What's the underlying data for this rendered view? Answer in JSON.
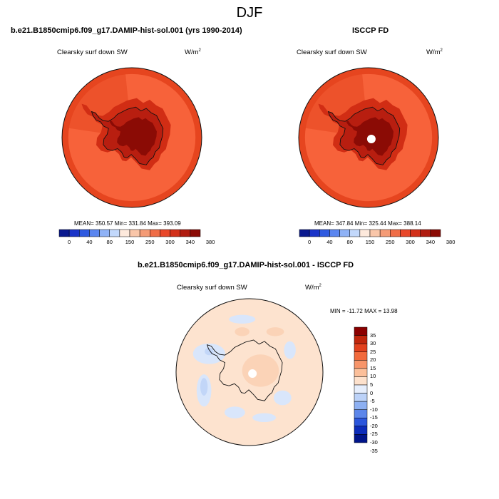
{
  "page_title": "DJF",
  "panel_left": {
    "title": "b.e21.B1850cmip6.f09_g17.DAMIP-hist-sol.001 (yrs 1990-2014)",
    "variable": "Clearsky surf down SW",
    "units_base": "W/m",
    "units_exp": "2",
    "stats": "MEAN= 350.57  Min= 331.84  Max= 393.09"
  },
  "panel_right": {
    "title": "ISCCP FD",
    "variable": "Clearsky surf down SW",
    "units_base": "W/m",
    "units_exp": "2",
    "stats": "MEAN= 347.84  Min= 325.44  Max= 388.14"
  },
  "panel_diff": {
    "title": "b.e21.B1850cmip6.f09_g17.DAMIP-hist-sol.001 - ISCCP FD",
    "variable": "Clearsky surf down SW",
    "units_base": "W/m",
    "units_exp": "2",
    "stats": "MIN = -11.72 MAX =  13.98"
  },
  "colors": {
    "abs_scale": [
      "#0b1a8f",
      "#1a34c8",
      "#2f5ae0",
      "#5b86f0",
      "#8fb2f6",
      "#c2d8fb",
      "#fde9dc",
      "#f9c6a9",
      "#f49b76",
      "#ef6d47",
      "#e8482a",
      "#d2301a",
      "#b01c10",
      "#8b0b05"
    ],
    "diff_scale": [
      "#8b0000",
      "#c0260c",
      "#e2411d",
      "#f26a3c",
      "#f7956a",
      "#fbbf9a",
      "#fde1cc",
      "#e6eefc",
      "#bcd2f8",
      "#8db0f2",
      "#5c86ea",
      "#2b56dc",
      "#0c2cba",
      "#00148a"
    ],
    "ocean_abs": "#f7623a",
    "band_abs": "#e6451f",
    "coast_abs": "#d12d14",
    "interior_abs": "#b81e10",
    "core_abs": "#8b0b05",
    "diff_base": "#fde3cf"
  },
  "chart_data": [
    {
      "type": "heatmap",
      "title": "b.e21.B1850cmip6.f09_g17.DAMIP-hist-sol.001 (yrs 1990-2014)",
      "variable": "Clearsky surf down SW",
      "units": "W/m2",
      "projection": "south polar stereographic",
      "mean": 350.57,
      "min": 331.84,
      "max": 393.09,
      "colorbar_levels": [
        0,
        40,
        80,
        150,
        250,
        300,
        340,
        380
      ],
      "colorbar_labels": [
        "0",
        "40",
        "80",
        "150",
        "250",
        "300",
        "340",
        "380"
      ]
    },
    {
      "type": "heatmap",
      "title": "ISCCP FD",
      "variable": "Clearsky surf down SW",
      "units": "W/m2",
      "projection": "south polar stereographic",
      "mean": 347.84,
      "min": 325.44,
      "max": 388.14,
      "colorbar_levels": [
        0,
        40,
        80,
        150,
        250,
        300,
        340,
        380
      ],
      "colorbar_labels": [
        "0",
        "40",
        "80",
        "150",
        "250",
        "300",
        "340",
        "380"
      ]
    },
    {
      "type": "heatmap",
      "title": "b.e21.B1850cmip6.f09_g17.DAMIP-hist-sol.001 - ISCCP FD",
      "variable": "Clearsky surf down SW",
      "units": "W/m2",
      "projection": "south polar stereographic",
      "min": -11.72,
      "max": 13.98,
      "colorbar_levels": [
        35,
        30,
        25,
        20,
        15,
        10,
        5,
        0,
        -5,
        -10,
        -15,
        -20,
        -25,
        -30,
        -35
      ],
      "colorbar_labels": [
        "35",
        "30",
        "25",
        "20",
        "15",
        "10",
        "5",
        "0",
        "-5",
        "-10",
        "-15",
        "-20",
        "-25",
        "-30",
        "-35"
      ]
    }
  ]
}
